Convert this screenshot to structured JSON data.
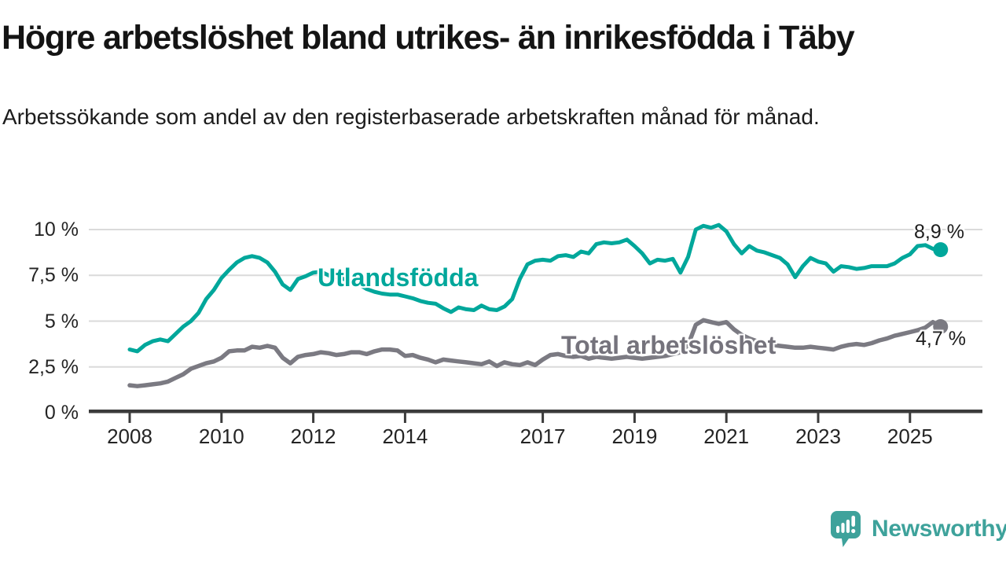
{
  "title": "Högre arbetslöshet bland utrikes- än inrikesfödda i Täby",
  "subtitle": "Arbetssökande som andel av den registerbaserade arbetskraften månad för månad.",
  "colors": {
    "foreign_born_line": "#00a79b",
    "total_line": "#7b7a82",
    "total_label_text": "#75737c",
    "gridline": "#dadada",
    "axis": "#3b3b3b",
    "tick_label": "#242424",
    "value_label": "#1d1d1d",
    "brand_teal": "#3ea29b"
  },
  "chart_data": {
    "type": "line",
    "unit": "%",
    "x_start": 2008,
    "x_step_months": 2,
    "x_end_approx": 2025.67,
    "ylim": [
      0,
      10.5
    ],
    "grid": "horizontal",
    "y_ticks": [
      {
        "value": 0,
        "label": "0 %"
      },
      {
        "value": 2.5,
        "label": "2,5 %"
      },
      {
        "value": 5,
        "label": "5 %"
      },
      {
        "value": 7.5,
        "label": "7,5 %"
      },
      {
        "value": 10,
        "label": "10 %"
      }
    ],
    "x_ticks": [
      {
        "value": 2008,
        "label": "2008"
      },
      {
        "value": 2010,
        "label": "2010"
      },
      {
        "value": 2012,
        "label": "2012"
      },
      {
        "value": 2014,
        "label": "2014"
      },
      {
        "value": 2017,
        "label": "2017"
      },
      {
        "value": 2019,
        "label": "2019"
      },
      {
        "value": 2021,
        "label": "2021"
      },
      {
        "value": 2023,
        "label": "2023"
      },
      {
        "value": 2025,
        "label": "2025"
      }
    ],
    "series": [
      {
        "name": "Utlandsfödda",
        "color": "#00a79b",
        "end_value": 8.9,
        "end_label": "8,9 %",
        "values": [
          3.45,
          3.35,
          3.7,
          3.9,
          4.0,
          3.9,
          4.3,
          4.7,
          5.0,
          5.45,
          6.2,
          6.7,
          7.35,
          7.8,
          8.2,
          8.45,
          8.55,
          8.45,
          8.2,
          7.7,
          7.0,
          6.7,
          7.3,
          7.45,
          7.65,
          7.7,
          7.5,
          7.4,
          7.3,
          7.15,
          7.0,
          6.75,
          6.6,
          6.5,
          6.45,
          6.45,
          6.35,
          6.25,
          6.1,
          6.0,
          5.95,
          5.7,
          5.5,
          5.75,
          5.65,
          5.6,
          5.85,
          5.65,
          5.6,
          5.8,
          6.2,
          7.3,
          8.1,
          8.3,
          8.35,
          8.3,
          8.55,
          8.6,
          8.5,
          8.8,
          8.7,
          9.2,
          9.3,
          9.25,
          9.3,
          9.45,
          9.1,
          8.7,
          8.15,
          8.35,
          8.3,
          8.4,
          7.65,
          8.5,
          10.0,
          10.2,
          10.1,
          10.25,
          9.9,
          9.2,
          8.7,
          9.1,
          8.85,
          8.75,
          8.6,
          8.45,
          8.1,
          7.4,
          8.0,
          8.45,
          8.25,
          8.15,
          7.7,
          8.0,
          7.95,
          7.85,
          7.9,
          8.0,
          8.0,
          8.0,
          8.15,
          8.45,
          8.65,
          9.1,
          9.15,
          8.95,
          8.9
        ]
      },
      {
        "name": "Total arbetslöshet",
        "color": "#7b7a82",
        "end_value": 4.7,
        "end_label": "4,7 %",
        "values": [
          1.5,
          1.45,
          1.5,
          1.55,
          1.6,
          1.7,
          1.9,
          2.1,
          2.4,
          2.55,
          2.7,
          2.8,
          3.0,
          3.35,
          3.4,
          3.4,
          3.6,
          3.55,
          3.65,
          3.55,
          3.0,
          2.7,
          3.05,
          3.15,
          3.2,
          3.3,
          3.25,
          3.15,
          3.2,
          3.3,
          3.3,
          3.2,
          3.35,
          3.45,
          3.45,
          3.4,
          3.1,
          3.15,
          3.0,
          2.9,
          2.75,
          2.9,
          2.85,
          2.8,
          2.75,
          2.7,
          2.65,
          2.8,
          2.55,
          2.75,
          2.65,
          2.6,
          2.75,
          2.6,
          2.9,
          3.15,
          3.2,
          3.1,
          3.05,
          3.1,
          2.95,
          3.05,
          3.0,
          2.95,
          3.0,
          3.05,
          3.0,
          2.95,
          3.0,
          3.05,
          3.1,
          3.2,
          3.3,
          3.7,
          4.8,
          5.05,
          4.95,
          4.85,
          4.95,
          4.55,
          4.25,
          4.05,
          3.9,
          3.8,
          3.7,
          3.65,
          3.6,
          3.55,
          3.55,
          3.6,
          3.55,
          3.5,
          3.45,
          3.6,
          3.7,
          3.75,
          3.7,
          3.8,
          3.95,
          4.05,
          4.2,
          4.3,
          4.4,
          4.5,
          4.65,
          4.95,
          4.7
        ]
      }
    ]
  },
  "branding": {
    "logo_text": "Newsworthy"
  }
}
